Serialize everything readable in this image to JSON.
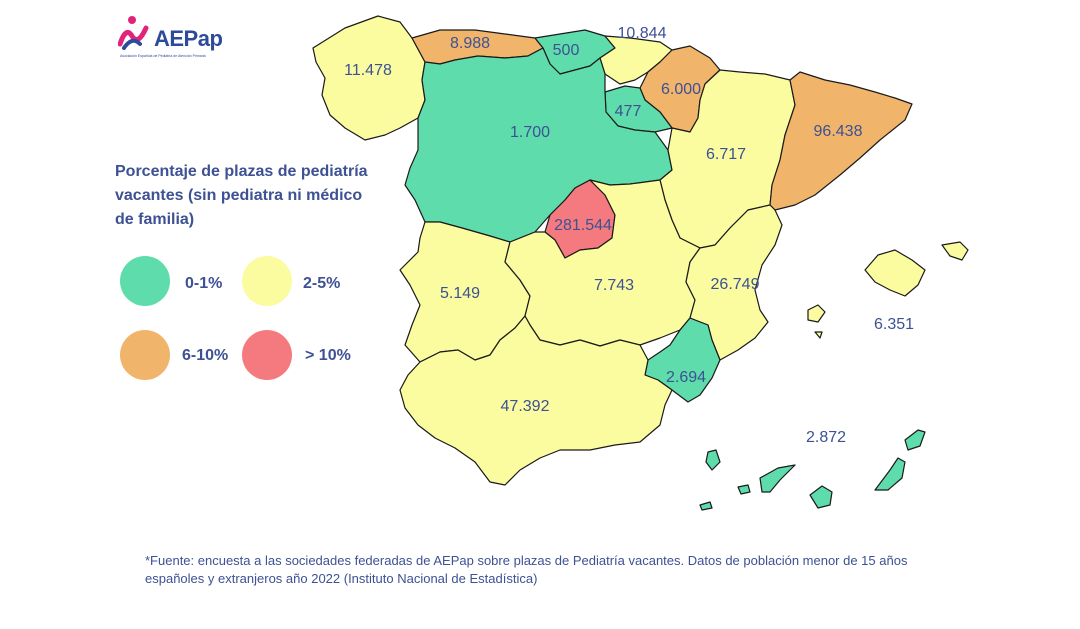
{
  "logo": {
    "text": "AEPap",
    "subtitle": "Asociación Española de Pediatría de Atención Primaria"
  },
  "legend": {
    "title": "Porcentaje de plazas de pediatría vacantes (sin pediatra ni médico de familia)",
    "items": [
      {
        "label": "0-1%",
        "color": "#5fdcab"
      },
      {
        "label": "2-5%",
        "color": "#fbfb9f"
      },
      {
        "label": "6-10%",
        "color": "#f0b46b"
      },
      {
        "label": "> 10%",
        "color": "#f47a7f"
      }
    ]
  },
  "regions": [
    {
      "id": "galicia",
      "value": "11.478",
      "category": "2-5%"
    },
    {
      "id": "asturias",
      "value": "8.988",
      "category": "6-10%"
    },
    {
      "id": "cantabria",
      "value": "500",
      "category": "0-1%"
    },
    {
      "id": "pais-vasco",
      "value": "10.844",
      "category": "2-5%"
    },
    {
      "id": "navarra",
      "value": "6.000",
      "category": "6-10%"
    },
    {
      "id": "la-rioja",
      "value": "477",
      "category": "0-1%"
    },
    {
      "id": "castilla-y-leon",
      "value": "1.700",
      "category": "0-1%"
    },
    {
      "id": "aragon",
      "value": "6.717",
      "category": "2-5%"
    },
    {
      "id": "cataluna",
      "value": "96.438",
      "category": "6-10%"
    },
    {
      "id": "madrid",
      "value": "281.544",
      "category": "> 10%"
    },
    {
      "id": "extremadura",
      "value": "5.149",
      "category": "2-5%"
    },
    {
      "id": "castilla-la-mancha",
      "value": "7.743",
      "category": "2-5%"
    },
    {
      "id": "valencia",
      "value": "26.749",
      "category": "2-5%"
    },
    {
      "id": "baleares",
      "value": "6.351",
      "category": "2-5%"
    },
    {
      "id": "murcia",
      "value": "2.694",
      "category": "0-1%"
    },
    {
      "id": "andalucia",
      "value": "47.392",
      "category": "2-5%"
    },
    {
      "id": "canarias",
      "value": "2.872",
      "category": "0-1%"
    }
  ],
  "footnote": "*Fuente: encuesta a las sociedades federadas de AEPap sobre plazas de Pediatría vacantes. Datos de población menor de 15 años españoles y extranjeros año 2022 (Instituto Nacional de Estadística)"
}
